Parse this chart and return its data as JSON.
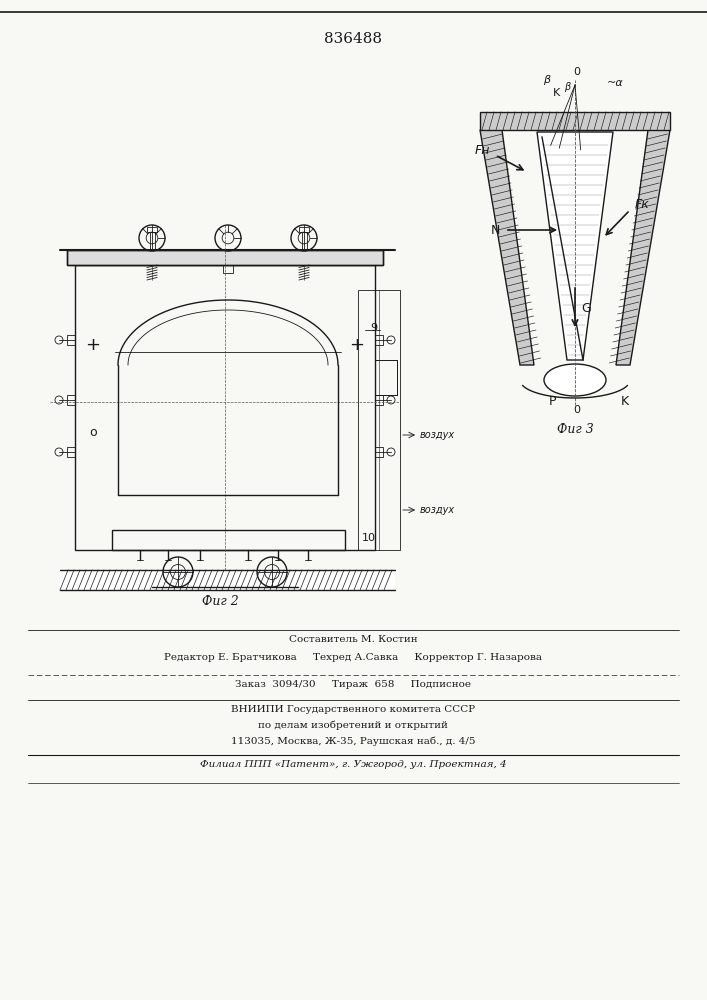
{
  "patent_number": "836488",
  "fig2_label": "Фиг 2",
  "fig3_label": "Фиг 3",
  "footer_lines": [
    "Составитель М. Костин",
    "Редактор Е. Братчикова     Техред А.Савка     Корректор Г. Назарова",
    "Заказ  3094/30     Тираж  658     Подписное",
    "ВНИИПИ Государственного комитета СССР",
    "по делам изобретений и открытий",
    "113035, Москва, Ж-35, Раушская наб., д. 4/5",
    "Филиал ППП «Патент», г. Ужгород, ул. Проектная, 4"
  ],
  "label_9": "9",
  "label_10": "10",
  "label_vozduh1": "воздух",
  "label_vozduh2": "воздух",
  "label_Fn": "Fн",
  "label_Fk": "Fк",
  "label_N": "N",
  "label_G": "G",
  "label_P": "P",
  "label_K": "K",
  "label_O_top": "0",
  "label_O_bot": "0",
  "label_alpha": "~α",
  "label_beta_top": "β",
  "label_beta2": "β",
  "label_K_top": "K",
  "bg_color": "#f8f8f5",
  "line_color": "#1a1a1a",
  "hatch_color": "#1a1a1a"
}
